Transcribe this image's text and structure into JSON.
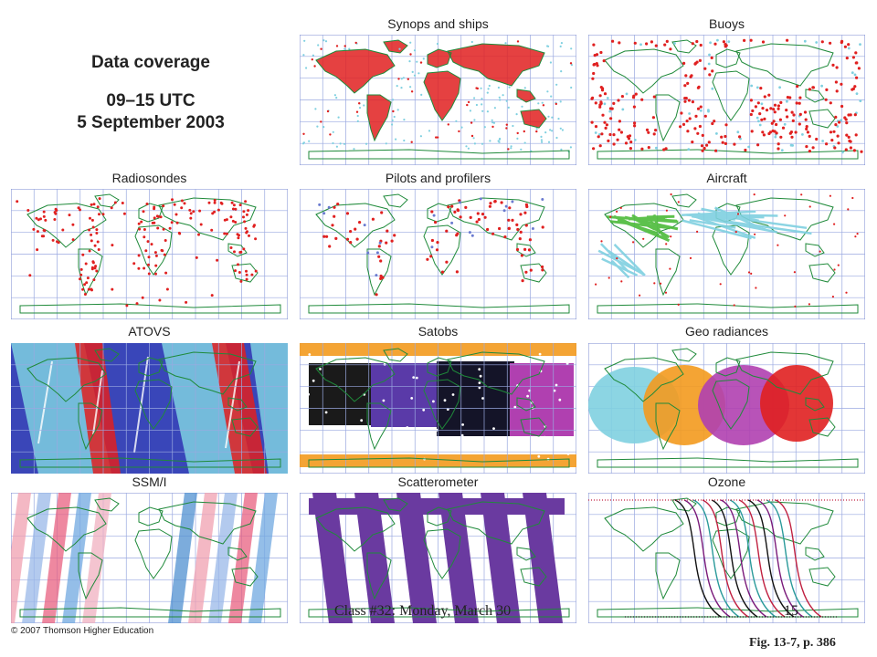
{
  "header": {
    "title": "Data coverage",
    "time": "09–15 UTC",
    "date": "5 September 2003"
  },
  "panels": [
    {
      "title": "Synops and ships",
      "style": "synops"
    },
    {
      "title": "Buoys",
      "style": "buoys"
    },
    {
      "title": "Radiosondes",
      "style": "radiosondes"
    },
    {
      "title": "Pilots and profilers",
      "style": "pilots"
    },
    {
      "title": "Aircraft",
      "style": "aircraft"
    },
    {
      "title": "ATOVS",
      "style": "atovs"
    },
    {
      "title": "Satobs",
      "style": "satobs"
    },
    {
      "title": "Geo radiances",
      "style": "geo"
    },
    {
      "title": "SSM/I",
      "style": "ssmi"
    },
    {
      "title": "Scatterometer",
      "style": "scatter"
    },
    {
      "title": "Ozone",
      "style": "ozone"
    }
  ],
  "footer": {
    "copyright": "© 2007 Thomson Higher Education",
    "class_label": "Class #32: Monday, March 30",
    "page_number": "15",
    "figure_ref": "Fig. 13-7, p. 386"
  },
  "colors": {
    "grid": "#9aa9e0",
    "coast": "#1f8a3a",
    "obs_red": "#e02020",
    "obs_cyan": "#7fd0e0",
    "obs_green": "#4cbb3a",
    "purple": "#6a3aa0",
    "orange": "#f39a1e",
    "magenta": "#b040b0"
  }
}
